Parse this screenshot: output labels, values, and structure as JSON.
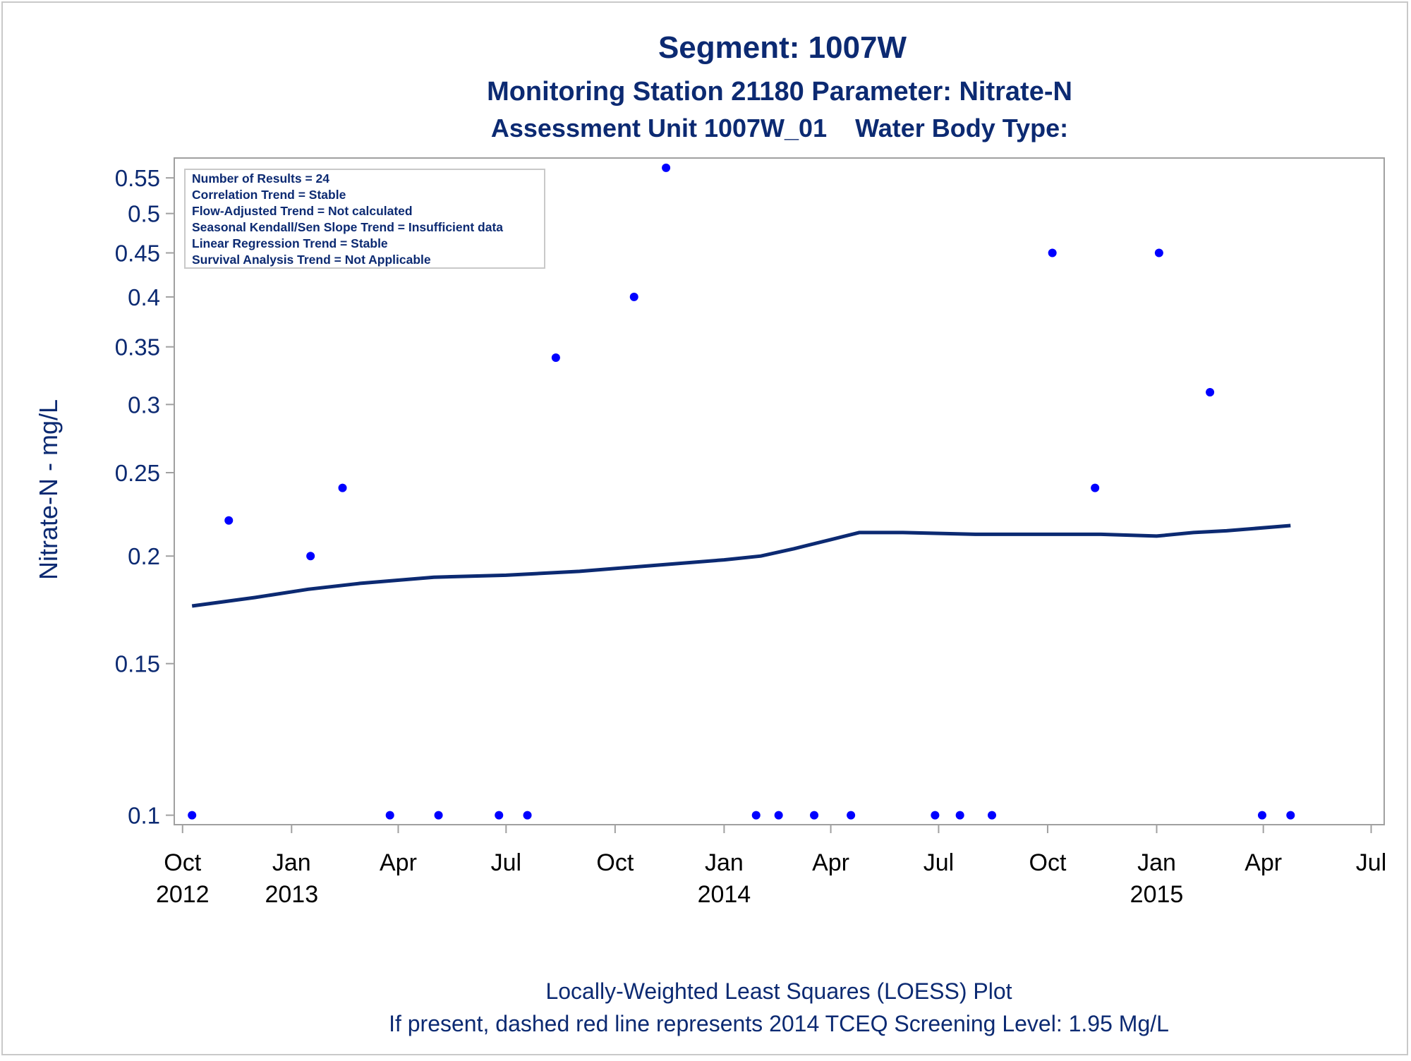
{
  "titles": {
    "line1": "Segment: 1007W",
    "line2": "Monitoring Station 21180 Parameter: Nitrate-N",
    "line3": "Assessment Unit 1007W_01    Water Body Type:"
  },
  "stats_box": [
    "Number of Results = 24",
    "Correlation Trend = Stable",
    "Flow-Adjusted Trend = Not calculated",
    "Seasonal Kendall/Sen Slope Trend = Insufficient data",
    "Linear Regression Trend = Stable",
    "Survival Analysis Trend = Not Applicable"
  ],
  "footnotes": {
    "line1": "Locally-Weighted Least Squares (LOESS) Plot",
    "line2": "If present, dashed red line represents 2014 TCEQ Screening Level: 1.95 Mg/L"
  },
  "colors": {
    "title": "#0c2a72",
    "axis_text": "#0c2a72",
    "points": "#0000ff",
    "loess": "#0c2a72",
    "frame": "#a0a0a0"
  },
  "chart_data": {
    "type": "scatter",
    "ylabel": "Nitrate-N - mg/L",
    "xlabel": "",
    "y_scale": "log",
    "ylim": [
      0.0975,
      0.58
    ],
    "xlim": [
      "2012-09-24",
      "2015-07-12"
    ],
    "y_ticks": [
      0.1,
      0.15,
      0.2,
      0.25,
      0.3,
      0.35,
      0.4,
      0.45,
      0.5,
      0.55
    ],
    "y_tick_labels": [
      "0.1",
      "0.15",
      "0.2",
      "0.25",
      "0.3",
      "0.35",
      "0.4",
      "0.45",
      "0.5",
      "0.55"
    ],
    "x_ticks": [
      {
        "date": "2012-10-01",
        "label": "Oct",
        "year": "2012"
      },
      {
        "date": "2013-01-01",
        "label": "Jan",
        "year": "2013"
      },
      {
        "date": "2013-04-01",
        "label": "Apr",
        "year": ""
      },
      {
        "date": "2013-07-01",
        "label": "Jul",
        "year": ""
      },
      {
        "date": "2013-10-01",
        "label": "Oct",
        "year": ""
      },
      {
        "date": "2014-01-01",
        "label": "Jan",
        "year": "2014"
      },
      {
        "date": "2014-04-01",
        "label": "Apr",
        "year": ""
      },
      {
        "date": "2014-07-01",
        "label": "Jul",
        "year": ""
      },
      {
        "date": "2014-10-01",
        "label": "Oct",
        "year": ""
      },
      {
        "date": "2015-01-01",
        "label": "Jan",
        "year": "2015"
      },
      {
        "date": "2015-04-01",
        "label": "Apr",
        "year": ""
      },
      {
        "date": "2015-07-01",
        "label": "Jul",
        "year": ""
      }
    ],
    "grid": false,
    "series": [
      {
        "type": "scatter",
        "points": [
          {
            "x": "2012-10-09",
            "y": 0.1
          },
          {
            "x": "2012-11-09",
            "y": 0.22
          },
          {
            "x": "2013-01-17",
            "y": 0.2
          },
          {
            "x": "2013-02-13",
            "y": 0.24
          },
          {
            "x": "2013-03-25",
            "y": 0.1
          },
          {
            "x": "2013-05-05",
            "y": 0.1
          },
          {
            "x": "2013-06-25",
            "y": 0.1
          },
          {
            "x": "2013-07-19",
            "y": 0.1
          },
          {
            "x": "2013-08-12",
            "y": 0.34
          },
          {
            "x": "2013-10-17",
            "y": 0.4
          },
          {
            "x": "2013-11-13",
            "y": 0.565
          },
          {
            "x": "2014-01-28",
            "y": 0.1
          },
          {
            "x": "2014-02-16",
            "y": 0.1
          },
          {
            "x": "2014-03-18",
            "y": 0.1
          },
          {
            "x": "2014-04-18",
            "y": 0.1
          },
          {
            "x": "2014-06-28",
            "y": 0.1
          },
          {
            "x": "2014-07-19",
            "y": 0.1
          },
          {
            "x": "2014-08-15",
            "y": 0.1
          },
          {
            "x": "2014-10-05",
            "y": 0.45
          },
          {
            "x": "2014-11-10",
            "y": 0.24
          },
          {
            "x": "2015-01-03",
            "y": 0.45
          },
          {
            "x": "2015-02-15",
            "y": 0.31
          },
          {
            "x": "2015-03-31",
            "y": 0.1
          },
          {
            "x": "2015-04-24",
            "y": 0.1
          }
        ]
      },
      {
        "type": "line",
        "points": [
          {
            "x": "2012-10-09",
            "y": 0.175
          },
          {
            "x": "2012-12-01",
            "y": 0.179
          },
          {
            "x": "2013-01-15",
            "y": 0.183
          },
          {
            "x": "2013-03-01",
            "y": 0.186
          },
          {
            "x": "2013-05-01",
            "y": 0.189
          },
          {
            "x": "2013-07-01",
            "y": 0.19
          },
          {
            "x": "2013-09-01",
            "y": 0.192
          },
          {
            "x": "2013-11-01",
            "y": 0.195
          },
          {
            "x": "2014-01-01",
            "y": 0.198
          },
          {
            "x": "2014-02-01",
            "y": 0.2
          },
          {
            "x": "2014-03-01",
            "y": 0.204
          },
          {
            "x": "2014-04-01",
            "y": 0.209
          },
          {
            "x": "2014-04-25",
            "y": 0.213
          },
          {
            "x": "2014-06-01",
            "y": 0.213
          },
          {
            "x": "2014-08-01",
            "y": 0.212
          },
          {
            "x": "2014-10-01",
            "y": 0.212
          },
          {
            "x": "2014-11-15",
            "y": 0.212
          },
          {
            "x": "2015-01-01",
            "y": 0.211
          },
          {
            "x": "2015-02-01",
            "y": 0.213
          },
          {
            "x": "2015-03-01",
            "y": 0.214
          },
          {
            "x": "2015-04-24",
            "y": 0.217
          }
        ]
      }
    ]
  }
}
